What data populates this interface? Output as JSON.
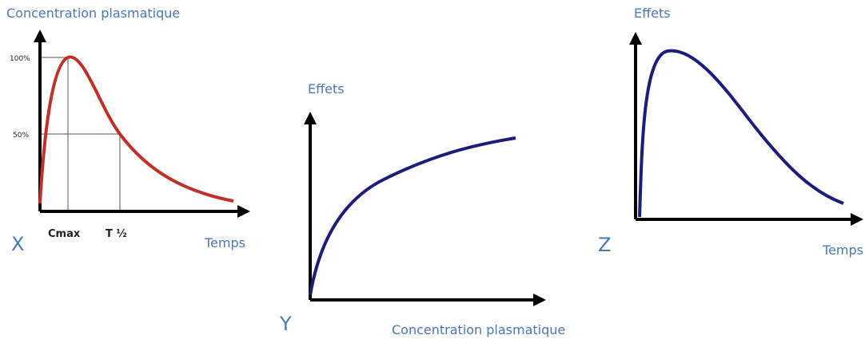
{
  "panels": [
    {
      "label": "X",
      "y_label": "Concentration plasmatique",
      "x_label": "Temps",
      "ticks": [
        "100%",
        "50%"
      ],
      "markers": [
        "Cmax",
        "T ½"
      ]
    },
    {
      "label": "Y",
      "y_label": "Effets",
      "x_label": "Concentration plasmatique"
    },
    {
      "label": "Z",
      "y_label": "Effets",
      "x_label": "Temps"
    }
  ]
}
